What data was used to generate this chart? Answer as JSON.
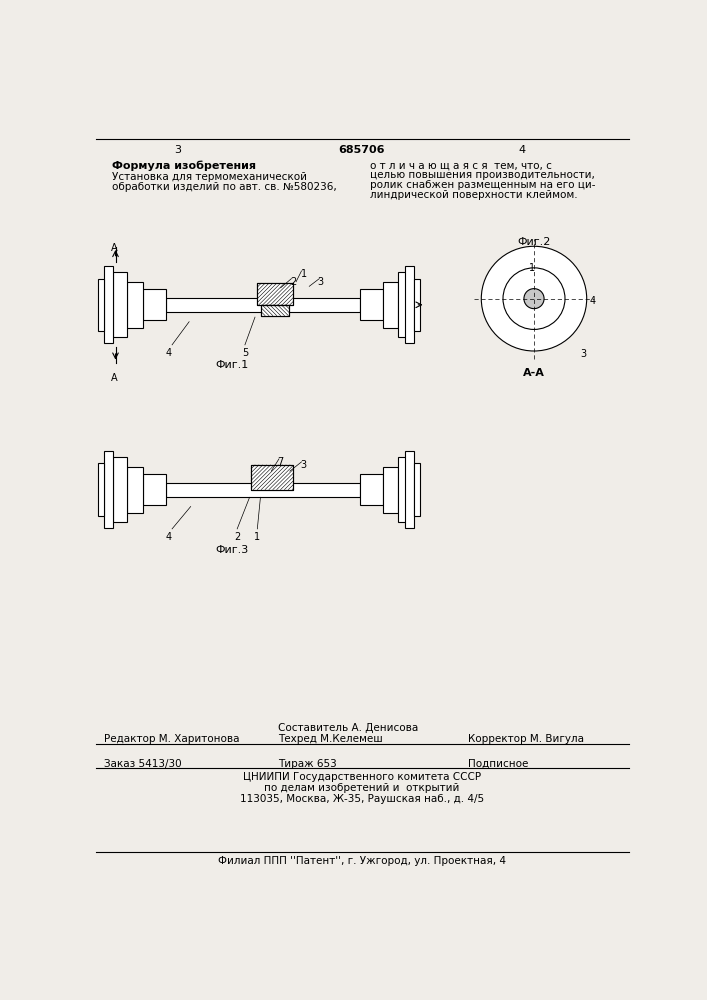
{
  "bg_color": "#f0ede8",
  "page_title": "685706",
  "page_left": "3",
  "page_right": "4",
  "formula_title": "Формула изобретения",
  "formula_text1": "Установка для термомеханической",
  "formula_text2": "обработки изделий по авт. св. №580236,",
  "right_text1": "о т л и ч а ю щ а я с я  тем, что, с",
  "right_text2": "целью повышения производительности,",
  "right_text3": "ролик снабжен размещенным на его ци-",
  "right_text4": "линдрической поверхности клеймом.",
  "fig1_label": "Фиг.1",
  "fig2_label": "Фиг.2",
  "fig3_label": "Фиг.3",
  "section_label": "А-А",
  "editor_line": "Редактор М. Харитонова",
  "composer_line": "Составитель А. Денисова",
  "techred_line": "Техред М.Келемеш",
  "corrector_line": "Корректор М. Вигула",
  "order_line": "Заказ 5413/30",
  "tirazh_line": "Тираж 653",
  "podpisnoe_line": "Подписное",
  "tsniip_line1": "ЦНИИПИ Государственного комитета СССР",
  "tsniip_line2": "по делам изобретений и  открытий",
  "address_line": "113035, Москва, Ж-35, Раушская наб., д. 4/5",
  "filial_line": "Филиал ППП ''Патент'', г. Ужгород, ул. Проектная, 4"
}
